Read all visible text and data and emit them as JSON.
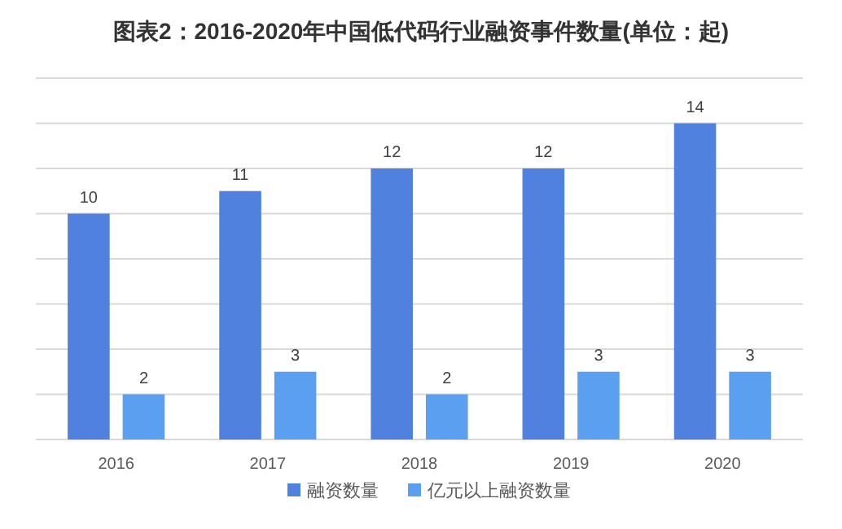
{
  "chart_data": {
    "type": "bar",
    "title": "图表2：2016-2020年中国低代码行业融资事件数量(单位：起)",
    "categories": [
      "2016",
      "2017",
      "2018",
      "2019",
      "2020"
    ],
    "series": [
      {
        "name": "融资数量",
        "color": "#5081de",
        "values": [
          10,
          11,
          12,
          12,
          14
        ]
      },
      {
        "name": "亿元以上融资数量",
        "color": "#5b9ff0",
        "values": [
          2,
          3,
          2,
          3,
          3
        ]
      }
    ],
    "ylim": [
      0,
      16
    ],
    "yticks": [
      {
        "value": 0,
        "label": null
      },
      {
        "value": 2,
        "label": null
      },
      {
        "value": 4,
        "label": null
      },
      {
        "value": 6,
        "label": null
      },
      {
        "value": 8,
        "label": null
      },
      {
        "value": 10,
        "label": null
      },
      {
        "value": 12,
        "label": null
      },
      {
        "value": 14,
        "label": null
      },
      {
        "value": 16,
        "label": null
      }
    ],
    "grid": "y",
    "data_labels": true,
    "legend": "bottom",
    "tick_labels": "x"
  }
}
